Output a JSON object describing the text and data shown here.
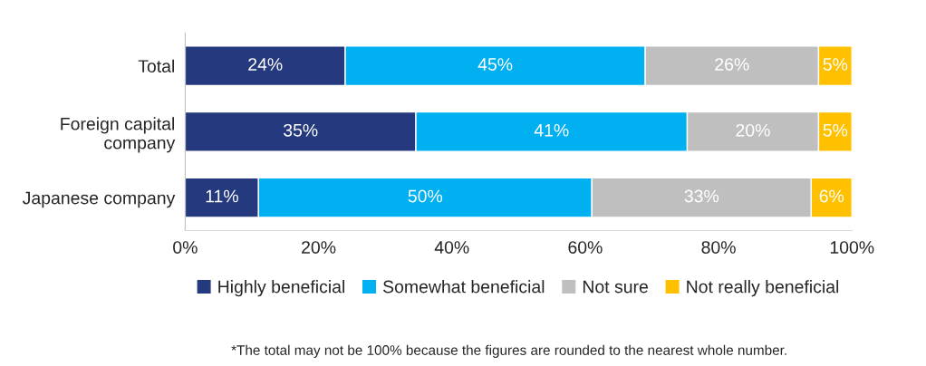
{
  "chart_data": {
    "type": "bar",
    "orientation": "horizontal",
    "stacked": true,
    "categories": [
      "Total",
      "Foreign capital\ncompany",
      "Japanese company"
    ],
    "series": [
      {
        "name": "Highly beneficial",
        "color": "#253a7e",
        "values": [
          24.0,
          34.6,
          11.0
        ],
        "value_labels": [
          "24%",
          "35%",
          "11%"
        ]
      },
      {
        "name": "Somewhat beneficial",
        "color": "#00b0f0",
        "values": [
          45.0,
          40.7,
          50.0
        ],
        "value_labels": [
          "45%",
          "41%",
          "50%"
        ]
      },
      {
        "name": "Not sure",
        "color": "#bfbfbf",
        "values": [
          26.0,
          19.7,
          32.9
        ],
        "value_labels": [
          "26%",
          "20%",
          "33%"
        ]
      },
      {
        "name": "Not really beneficial",
        "color": "#ffc000",
        "values": [
          5.0,
          5.0,
          6.1
        ],
        "value_labels": [
          "5%",
          "5%",
          "6%"
        ]
      }
    ],
    "xlim": [
      0,
      100
    ],
    "xticks": [
      {
        "value": 0,
        "label": "0%"
      },
      {
        "value": 20,
        "label": "20%"
      },
      {
        "value": 40,
        "label": "40%"
      },
      {
        "value": 60,
        "label": "60%"
      },
      {
        "value": 80,
        "label": "80%"
      },
      {
        "value": 100,
        "label": "100%"
      }
    ],
    "grid": false,
    "legend": "bottom",
    "annotations": [
      "*The total may not be 100% because the figures are rounded to the nearest whole number."
    ]
  }
}
